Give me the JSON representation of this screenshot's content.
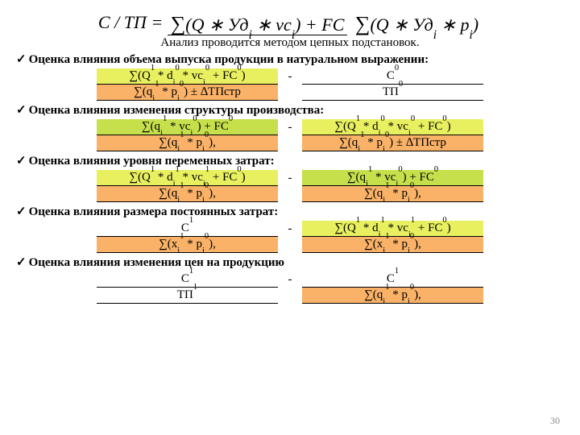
{
  "colors": {
    "yellow": "#e8f060",
    "orange": "#f9b267",
    "yellowgreen": "#c6e04c",
    "border": "#000000",
    "bg": "#ffffff"
  },
  "formula_text": "C / ТП = ∑(Q * Удᵢ * vcᵢ) + FC  /  ∑(Q * Удᵢ * pᵢ)",
  "intro": "Анализ проводится методом цепных подстановок.",
  "sections": [
    {
      "heading": "Оценка влияния объема выпуска продукции в натуральном выражении:",
      "left": {
        "top": "∑(Q¹ * dᵢ⁰ * vcᵢ⁰ + FC⁰)",
        "top_bg": "yellow",
        "bot": "∑(qᵢ¹ * pᵢ⁰) ± ∆ТПстр",
        "bot_bg": "orange"
      },
      "right": {
        "top": "С⁰",
        "top_bg": "",
        "bot": "ТП⁰",
        "bot_bg": ""
      },
      "minus": "-"
    },
    {
      "heading": "Оценка влияния изменения структуры производства:",
      "left": {
        "top": "∑(qᵢ¹ * vcᵢ⁰) + FC⁰",
        "top_bg": "yellowgreen",
        "bot": "∑(qᵢ¹ * pᵢ⁰),",
        "bot_bg": "orange"
      },
      "right": {
        "top": "∑(Q¹ * dᵢ⁰ * vcᵢ⁰ + FC⁰)",
        "top_bg": "yellow",
        "bot": "∑(qᵢ¹ * pᵢ⁰) ± ∆ТПстр",
        "bot_bg": "orange"
      },
      "minus": "-"
    },
    {
      "heading": "Оценка влияния  уровня переменных затрат:",
      "left": {
        "top": "∑(Q¹ * dᵢ¹ * vcᵢ¹ + FC⁰)",
        "top_bg": "yellow",
        "bot": "∑(qᵢ¹ * pᵢ⁰),",
        "bot_bg": "orange"
      },
      "right": {
        "top": "∑(qᵢ¹ * vcᵢ⁰) + FC⁰",
        "top_bg": "yellowgreen",
        "bot": "∑(qᵢ¹ * pᵢ⁰),",
        "bot_bg": "orange"
      },
      "minus": "-"
    },
    {
      "heading": "Оценка влияния  размера постоянных затрат:",
      "left": {
        "top": "С¹",
        "top_bg": "",
        "bot": "∑(xᵢ¹ * pᵢ⁰),",
        "bot_bg": "orange"
      },
      "right": {
        "top": "∑(Q¹ * dᵢ¹ * vcᵢ¹ + FC⁰)",
        "top_bg": "yellow",
        "bot": "∑(xᵢ¹ * pᵢ⁰),",
        "bot_bg": "orange"
      },
      "minus": "-"
    },
    {
      "heading": "Оценка влияния изменения цен на продукцию",
      "left": {
        "top": "С¹",
        "top_bg": "",
        "bot": "ТП¹",
        "bot_bg": ""
      },
      "right": {
        "top": "С¹",
        "top_bg": "",
        "bot": "∑(qᵢ¹ * pᵢ⁰),",
        "bot_bg": "orange"
      },
      "minus": "-"
    }
  ],
  "page_number": "30"
}
